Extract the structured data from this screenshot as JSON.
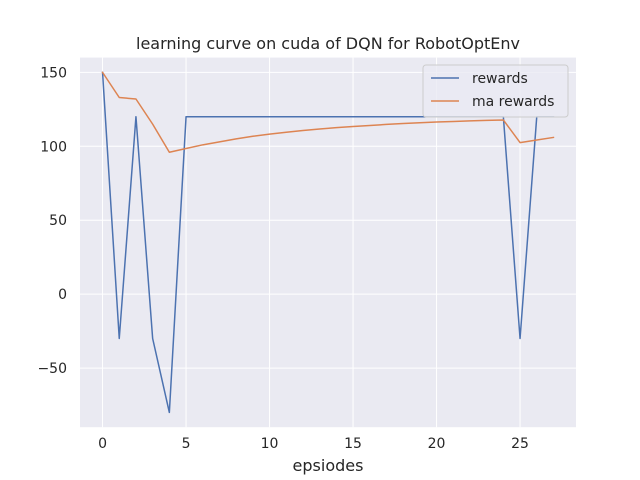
{
  "chart_data": {
    "type": "line",
    "title": "learning curve on cuda of DQN for RobotOptEnv",
    "xlabel": "epsiodes",
    "ylabel": "",
    "xlim": [
      -1.35,
      28.35
    ],
    "ylim": [
      -90,
      160
    ],
    "x_ticks": [
      0,
      5,
      10,
      15,
      20,
      25
    ],
    "y_ticks": [
      -50,
      0,
      50,
      100,
      150
    ],
    "y_tick_labels": [
      "−50",
      "0",
      "50",
      "100",
      "150"
    ],
    "grid": true,
    "legend_position": "top-right",
    "x": [
      0,
      1,
      2,
      3,
      4,
      5,
      6,
      7,
      8,
      9,
      10,
      11,
      12,
      13,
      14,
      15,
      16,
      17,
      18,
      19,
      20,
      21,
      22,
      23,
      24,
      25,
      26,
      27
    ],
    "series": [
      {
        "name": "rewards",
        "color": "#4c72b0",
        "values": [
          150,
          -30,
          120,
          -30,
          -80,
          120,
          120,
          120,
          120,
          120,
          120,
          120,
          120,
          120,
          120,
          120,
          120,
          120,
          120,
          120,
          120,
          120,
          120,
          120,
          120,
          -30,
          120,
          120
        ]
      },
      {
        "name": "ma rewards",
        "color": "#dd8452",
        "values": [
          150,
          133,
          132,
          115,
          96,
          98.5,
          101,
          103,
          105,
          106.8,
          108.2,
          109.5,
          110.7,
          111.7,
          112.6,
          113.4,
          114.1,
          114.8,
          115.4,
          115.9,
          116.4,
          116.8,
          117.2,
          117.5,
          117.8,
          102.5,
          104.3,
          106
        ]
      }
    ]
  }
}
